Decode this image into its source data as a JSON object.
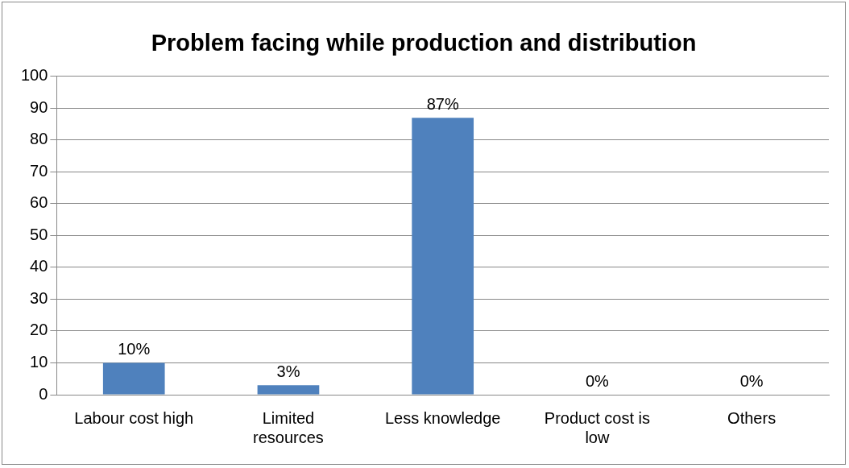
{
  "chart_data": {
    "type": "bar",
    "title": "Problem facing while production and distribution",
    "categories": [
      "Labour cost high",
      "Limited resources",
      "Less knowledge",
      "Product cost is low",
      "Others"
    ],
    "values": [
      10,
      3,
      87,
      0,
      0
    ],
    "color": "#4f81bd",
    "value_labels": [
      "10%",
      "3%",
      "87%",
      "0%",
      "0%"
    ],
    "ylim": [
      0,
      100
    ],
    "yticks": [
      0,
      10,
      20,
      30,
      40,
      50,
      60,
      70,
      80,
      90,
      100
    ],
    "grid": "y",
    "legend": false
  }
}
